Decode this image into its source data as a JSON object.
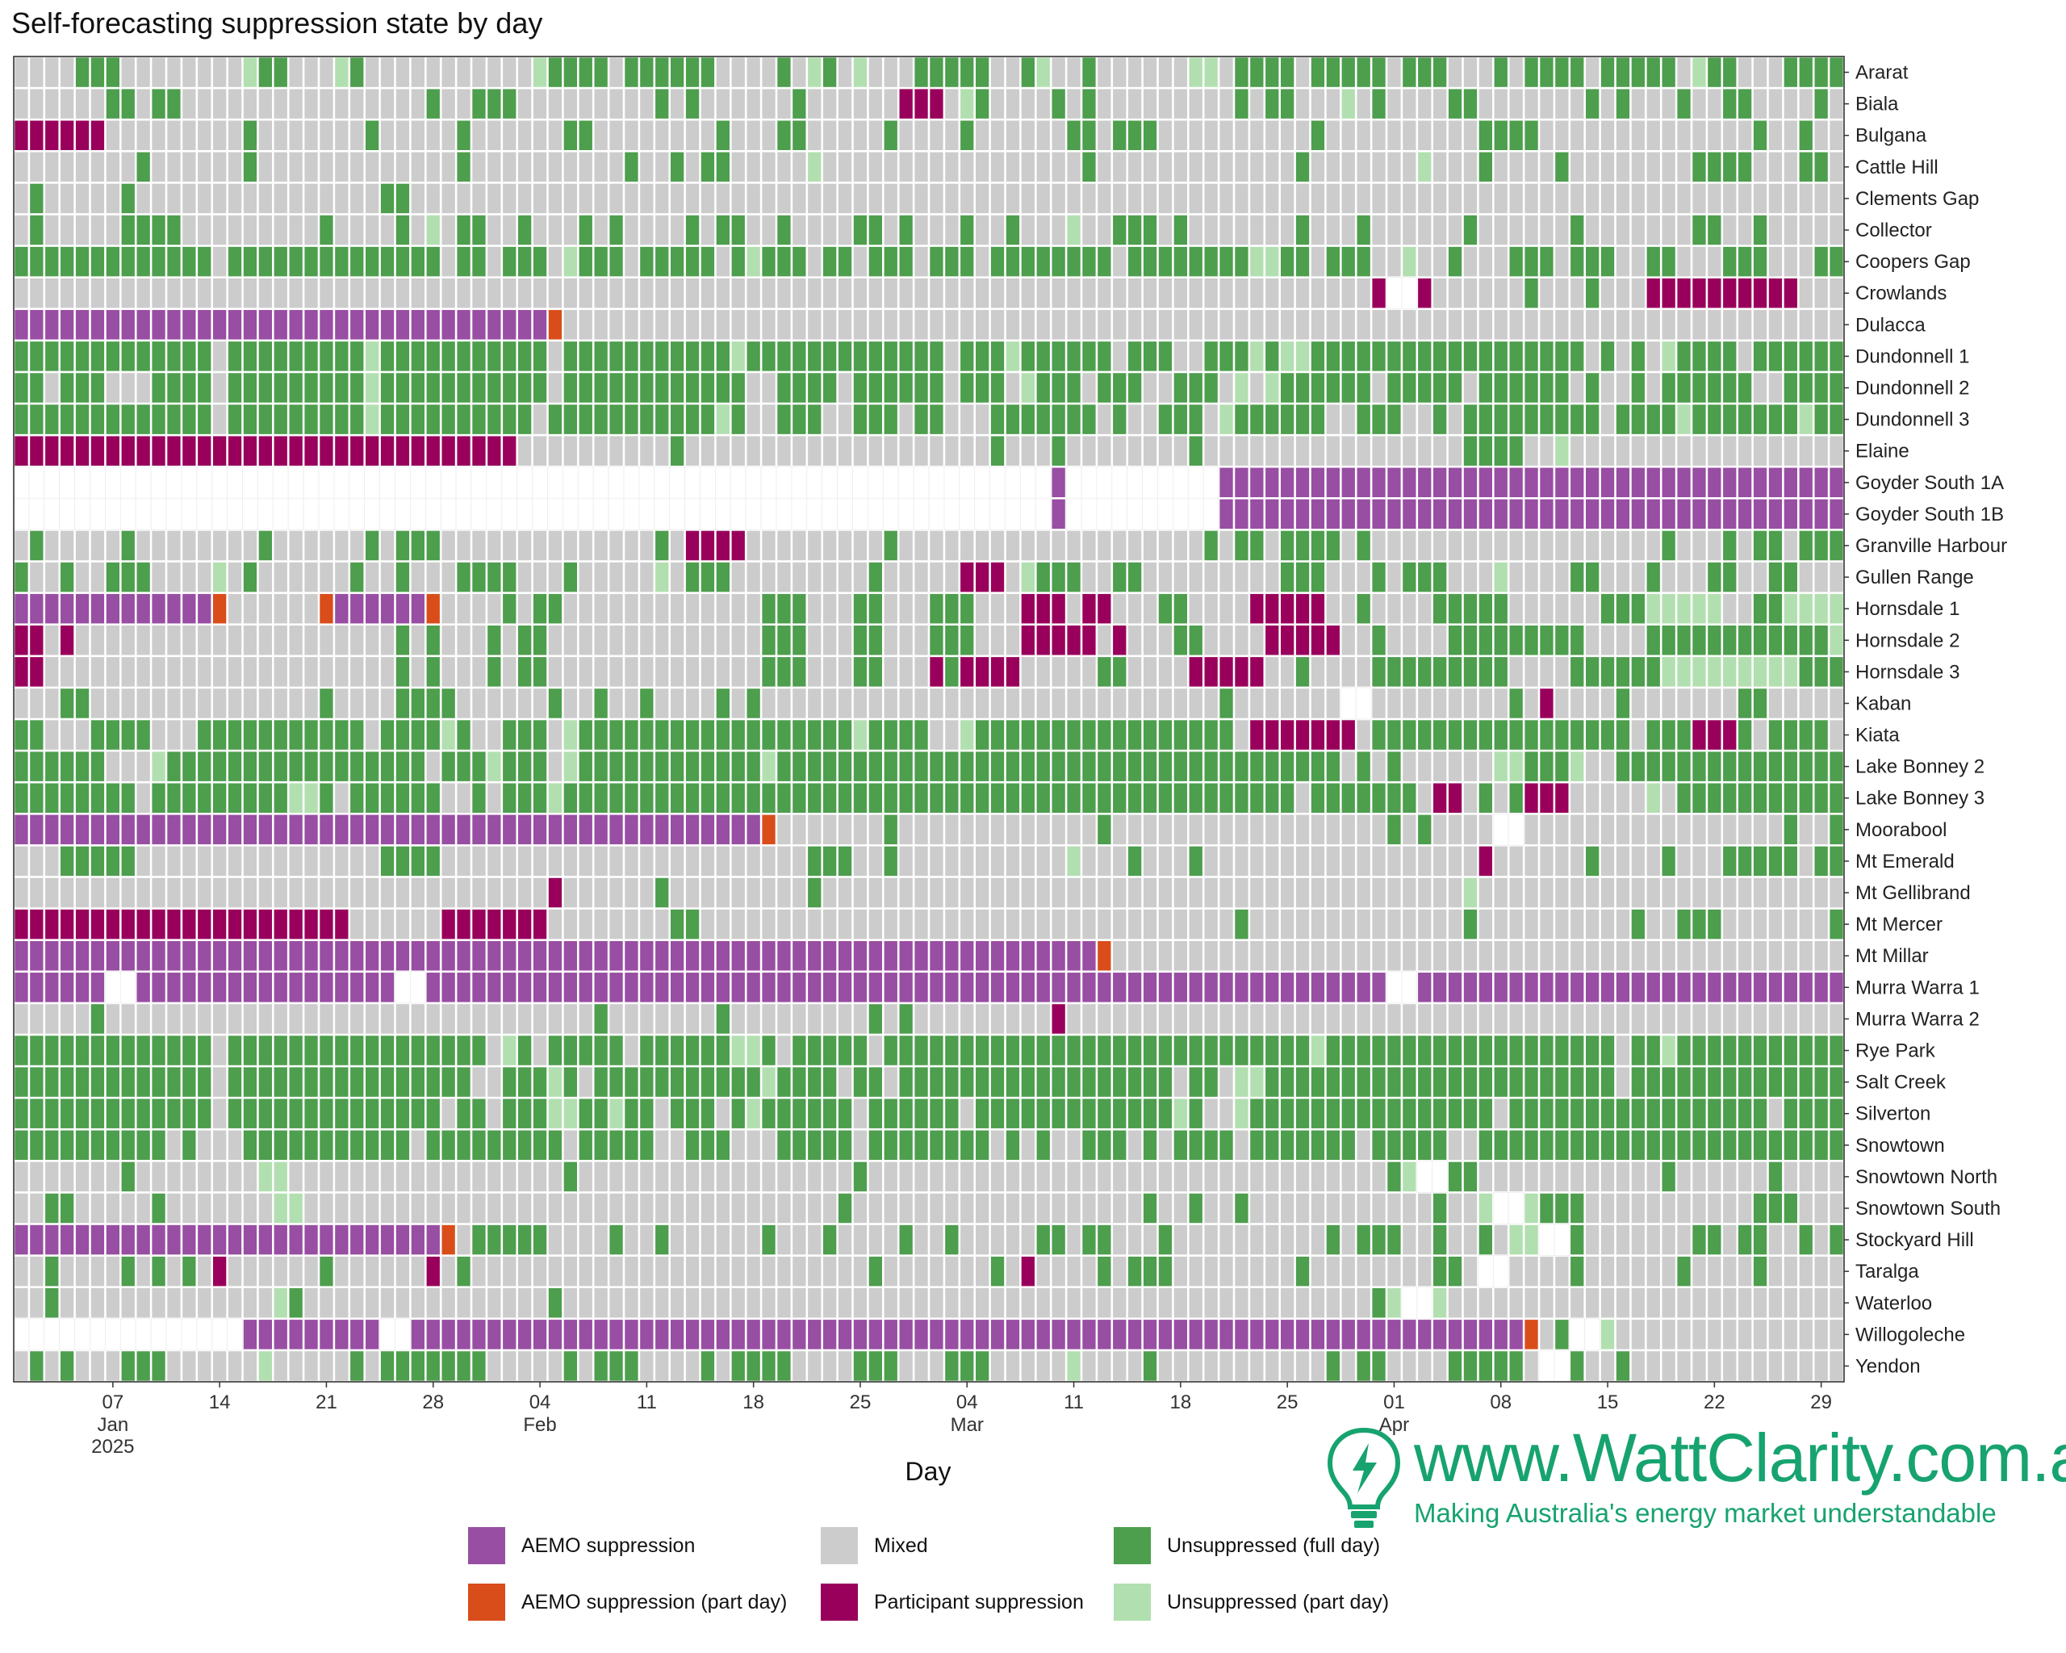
{
  "title": "Self-forecasting suppression state by day",
  "colors": {
    "aemo": "#984ea3",
    "aemo_part": "#d94d1a",
    "mixed": "#cccccc",
    "participant": "#99005c",
    "full": "#4d9e4d",
    "partday": "#b2dfb0",
    "brand": "#17a36f"
  },
  "legend": [
    {
      "key": "A",
      "label": "AEMO suppression",
      "color": "#984ea3"
    },
    {
      "key": "O",
      "label": "AEMO suppression (part day)",
      "color": "#d94d1a"
    },
    {
      "key": "M",
      "label": "Mixed",
      "color": "#cccccc"
    },
    {
      "key": "P",
      "label": "Participant suppression",
      "color": "#99005c"
    },
    {
      "key": "U",
      "label": "Unsuppressed (full day)",
      "color": "#4d9e4d"
    },
    {
      "key": "L",
      "label": "Unsuppressed (part day)",
      "color": "#b2dfb0"
    }
  ],
  "brand": {
    "url": "www.WattClarity.com.au",
    "registered": "®",
    "tagline": "Making Australia's energy market understandable"
  },
  "chart_data": {
    "type": "heatmap",
    "title": "Self-forecasting suppression state by day",
    "xlabel": "Day",
    "ylabel": "",
    "x_range": [
      "2025-01-01",
      "2025-04-30"
    ],
    "x_ticks": [
      {
        "date": "2025-01-07",
        "label": "07",
        "sub": "Jan",
        "sub2": "2025"
      },
      {
        "date": "2025-01-14",
        "label": "14",
        "sub": "",
        "sub2": ""
      },
      {
        "date": "2025-01-21",
        "label": "21",
        "sub": "",
        "sub2": ""
      },
      {
        "date": "2025-01-28",
        "label": "28",
        "sub": "",
        "sub2": ""
      },
      {
        "date": "2025-02-04",
        "label": "04",
        "sub": "Feb",
        "sub2": ""
      },
      {
        "date": "2025-02-11",
        "label": "11",
        "sub": "",
        "sub2": ""
      },
      {
        "date": "2025-02-18",
        "label": "18",
        "sub": "",
        "sub2": ""
      },
      {
        "date": "2025-02-25",
        "label": "25",
        "sub": "",
        "sub2": ""
      },
      {
        "date": "2025-03-04",
        "label": "04",
        "sub": "Mar",
        "sub2": ""
      },
      {
        "date": "2025-03-11",
        "label": "11",
        "sub": "",
        "sub2": ""
      },
      {
        "date": "2025-03-18",
        "label": "18",
        "sub": "",
        "sub2": ""
      },
      {
        "date": "2025-03-25",
        "label": "25",
        "sub": "",
        "sub2": ""
      },
      {
        "date": "2025-04-01",
        "label": "01",
        "sub": "Apr",
        "sub2": ""
      },
      {
        "date": "2025-04-08",
        "label": "08",
        "sub": "",
        "sub2": ""
      },
      {
        "date": "2025-04-15",
        "label": "15",
        "sub": "",
        "sub2": ""
      },
      {
        "date": "2025-04-22",
        "label": "22",
        "sub": "",
        "sub2": ""
      },
      {
        "date": "2025-04-29",
        "label": "29",
        "sub": "",
        "sub2": ""
      }
    ],
    "state_codes": {
      "A": "AEMO suppression",
      "O": "AEMO suppression (part day)",
      "M": "Mixed",
      "P": "Participant suppression",
      "U": "Unsuppressed (full day)",
      "L": "Unsuppressed (part day)",
      "-": "No data"
    },
    "units": [
      {
        "name": "Ararat",
        "states": "MMMMUUUMMMMMMMMLUUMMMLUMMMMMMMMMMMLUUUUMUUUUUUMMMMUMLUMLMMMUUUUUMMULMMUMMMMMMLLMUUUUMUUUUUMUUUMMMUMUUUUMUUUUUMLUUMMMUUUUULM"
      },
      {
        "name": "Biala",
        "states": "MMMMMMUUMUUMMMMMMMMMMMMMMMMUMMUUUMMMMMMMMMUMUMMMMMMUMMMMMMPPPMLUMMMMUMUMMMMMMMMMUMUUMMMLMUMMMMUUMMMMMMMUMUMMMUMMUUMMMMUMMLUM"
      },
      {
        "name": "Bulgana",
        "states": "PPPPPPMMMMMMMMMUMMMMMMMUMMMMMUMMMMMMUUMMMMMMMMUMMMUUMMMMMUMMMMUMMMMMMUUMUUUMMMMMMMMMMUMMMMMMMMMMUUUUMMMMMMMMMMMMMMUMMUMMUMMUM"
      },
      {
        "name": "Cattle Hill",
        "states": "MMMMMMMMUMMMMMMUMMMMMMMMMMMMMUMMMMMMMMMMUMMUMUUMMMMMLMMMMMMMMMMMMMMMMMUMMMMMMMMMMMMMUMMMMMMMLMMMUMMMMUMMMMMMMMUUUUMMMUUMMUMMM"
      },
      {
        "name": "Clements Gap",
        "states": "MUMMMMMUMMMMMMMMMMMMMMMMUUMMMMMMMMMMMMMMMMMMMMMMMMMMMMMMMMMMMMMMMMMMMMMMMMMMMMMMMMMMMMMMMMMMMMMMMMMMMMMMMMMMMMMMMMMMMMMMMMMMU"
      },
      {
        "name": "Collector",
        "states": "MUMMMMMUUUUMMMMMMMMMUMMMMUMLMUUMMUMMMUMUMMMMUMUUMMUMMMMUUMUMMMUMMUMMMLMMUUUMUMMMMMMMUMMMUMMMMMMUMMMMMMUMMMMMMMUUMMUMMMMMUUUMMM"
      },
      {
        "name": "Coopers Gap",
        "states": "UUUUUUUUUUUUUMUUUUUUUUUUUUUUMUUMUUUMLUUUMUUUUUMULUUUMUUMUUUMUUUMUUUUUUUUMUUUUUUUULLUUMUUUMMLMMUMMMUUUMUUUMMUUMMMUUUMMMUUUUUMMU"
      },
      {
        "name": "Crowlands",
        "states": "MMMMMMMMMMMMMMMMMMMMMMMMMMMMMMMMMMMMMMMMMMMMMMMMMMMMMMMMMMMMMMMMMMMMMMMMMMMMMMMMMMMMMMMMMP--PMMMMMMUMMMUMMMPPPPPPPPPPMMMMMMMMM"
      },
      {
        "name": "Dulacca",
        "states": "AAAAAAAAAAAAAAAAAAAAAAAAAAAAAAAAAAAOMMMMMMMMMMMMMMMMMMMMMMMMMMMMMMMMMMMMMMMMMMMMMMMMMMMMMMMMMMMMMMMMMMMMMMMMMMMMMMMMMMMMMMMM"
      },
      {
        "name": "Dundonnell 1",
        "states": "UUUUUUUUUUUUUMUUUUUUUUULUUUUUUUUUUUMUUUUUUUUUUULUUUUUUUUUUUUUMUUULUUUUUUMUUUMMUUULULLUUUUUUUUUUUUUUUUUUMUMUMLUUUUMUUUUUULUUUUMUL"
      },
      {
        "name": "Dundonnell 2",
        "states": "UUMUUUMMMUUUUMUUUUUUUUULUUUUUUUUUUUMUUUUUUUUUUUUMMUUUUMUUUUUUMUUUMLUUUMUUUMMUUUMLMLUUUUUUMUUUUUMUUUUUUMUMMUMUUUUUUMMUUUUULUUUUUL"
      },
      {
        "name": "Dundonnell 3",
        "states": "UUUUUUUUUUUUUMUUUUUUUUULUUUUUUUUUUMUUUUUUUUUUULUMMUUUMMUUUMUUMMMUUUUUUUMUMMUUUMLUUUUUUMMUUUMMUMUUUUUUUUUMUUUULUUUUUUULUUUUMMUL"
      },
      {
        "name": "Elaine",
        "states": "PPPPPPPPPPPPPPPPPPPPPPPPPPPPPPPPPMMMMMMMMMMUMMMMMMMMMMMMMMMMMMMMUMMMUMMMMMMMMUMMMMMMMMMMMMMMMMMUUUUMMLMMMMMMMMMMMMMMMMMMUUMUMMUM"
      },
      {
        "name": "Goyder South 1A",
        "states": "--------------------------------------------------------------------A----------AAAAAAAAAAAAAAAAAAAAAAAAAAAAAAAAAAAAAAAAAAAAAA"
      },
      {
        "name": "Goyder South 1B",
        "states": "--------------------------------------------------------------------A----------AAAAAAAAAAAAAAAAAAAAAAAAAAAAAAAAAAAAAAAAAAAAAA"
      },
      {
        "name": "Granville Harbour",
        "states": "MUMMMMMUMMMMMMMMUMMMMMMUMUUUMMMMMMMMMMMMMMUMPPPPMMMMMMMMMUMMMMMMMMMMMMMMMMMMMMUMUUMUUUUMUMMMMMMMMMMMMMMMMMMMUMMMUMUUMUUUUUUMMMU"
      },
      {
        "name": "Gullen Range",
        "states": "UMMUMMUUUMMMMLMUMMMMMMUMMUMMMUUUUMMMUMMMMMLMUUUMMMMMMMMMUMMMMMPPPMLUUUMMUUMMMMMMMMMUUUMMMUMUUUMMMLMMMMUUMMMUMMMUUMMUUMMMUMMMUMM"
      },
      {
        "name": "Hornsdale 1",
        "states": "AAAAAAAAAAAAAOMMMMMMOAAAAAAOMMMMUMUUMMMMMMMMMMMMMUUUMMMUUMMMUUUMMMPPPMPPMMMUUMMMMPPPPPMMUMMMMUUUUUMMMMMMUUULLLLLMMUULLLLUUUUUUL"
      },
      {
        "name": "Hornsdale 2",
        "states": "PPMPMMMMMMMMMMMMMMMMMMMMMUMUMMMUMUUMMMMMMMMMMMMMMUUUMMMUUMMMUUUMMMPPPPPMPMMMUUMMMMPPPPPMMUMMMMUUUUUUUUUMMMMUUUUUUUUUUUULUUUUUUUM"
      },
      {
        "name": "Hornsdale 3",
        "states": "PPMMMMMMMMMMMMMMMMMMMMMMMUMUMMMUMUUMMMMMMMMMMMMMMUUUMMMUUMMMPUPPPPMMMMMUUMMMMPPPPPMMUMMMMUUUUUUUUUMMMMUUUUUULLLLLLLLLUUUUUUUUUUUM"
      },
      {
        "name": "Kaban",
        "states": "MMMUUMMMMMMMMMMMMMMMUMMMMUUUUMMMMMMUMMUMMUMMMMUMUMMMMMMMMMMMMMMMMMMMMMMMMMMMMMMUMMMMMMM--MMMMMMMMMUMPMMMMUMMMMMMMUUMMMMMMMMMMMMM"
      },
      {
        "name": "Kiata",
        "states": "UUMMMUUUUMMMUUUUUUUUUUUMUUUULUMMUUUMLUUUUUUUUUUUUUUUUUULUUUUMMLUUUUUUUUUUUUUUUUUMPPPPPPPMUUUUUUUUUUUUUUUUUMUUUPPPUMUUUUMUUMUUM"
      },
      {
        "name": "Lake Bonney 2",
        "states": "UUUUUUMMMLUUUUUUUUUUUUUUUUUMUUULUUUMLUUUUUUUUUUUULUUUUUUUUUUUUUUUUUUUUUUUUUUUUUUUUUUUUUMUMUMMMMMMLLUUULMMUUUUUUUUUUUUUUUUUUUUUU"
      },
      {
        "name": "Lake Bonney 3",
        "states": "UUUUUUUUMUUUUUUUUULLUMUUUUUUMMUMUUULUUUUUUUUUUUUUUUUUUUUUUUUUUUUUUUUUUUUUUUUUUUUUUUUMUUUUUUUMPPMUMUPPPMMMMMLMUUUUUUUUUUUUUUUUUUM"
      },
      {
        "name": "Moorabool",
        "states": "AAAAAAAAAAAAAAAAAAAAAAAAAAAAAAAAAAAAAAAAAAAAAAAAAOMMMMMMMUMMMMMMMMMMMMMUMMMMMMMMMMMMMMMMMMUMUMMMM--MMMMMMMMMMMMMMMMMUMMUMMMMMUMM"
      },
      {
        "name": "Mt Emerald",
        "states": "MMMUUUUUMMMMMMMMMMMMMMMMUUUUMMMMMMMMMMMMMMMMMMMMMMMMUUUMMUMMMMMMMMMMMLMMMUMMMUMMMMMMMMMMMMMMMMMMPMMMMMMUMMMMUMMMUUUUUMUUMMMMMMMM"
      },
      {
        "name": "Mt Gellibrand",
        "states": "MMMMMMMMMMMMMMMMMMMMMMMMMMMMMMMMMMMPMMMMMMUMMMMMMMMMUMMMMMMMMMMMMMMMMMMMMMMMMMMMMMMMMMMMMMMMMMMLMMMMMMMMMMMMMMMMMMMMMMMMMMMMMMM"
      },
      {
        "name": "Mt Mercer",
        "states": "PPPPPPPPPPPPPPPPPPPPPPMMMMMMPPPPPPPMMMMMMMMUUMMMMMMMMMMMMMMMMMMMMMMMMMMMMMMMMMMMUMMMMMMMMMMMMMMUMMMMMMMMMMUMMUUUMMMMMMMUMMUMMUMM"
      },
      {
        "name": "Mt Millar",
        "states": "AAAAAAAAAAAAAAAAAAAAAAAAAAAAAAAAAAAAAAAAAAAAAAAAAAAAAAAAAAAAAAAAAAAAAAAOMMMMMMMMMMMMMMMMMMMMMMMMMMMMMMMMMMMMMMMMMMMMMMMMMMMMMMM"
      },
      {
        "name": "Murra Warra 1",
        "states": "AAAAAA--AAAAAAAAAAAAAAAAA--AAAAAAAAAAAAAAAAAAAAAAAAAAAAAAAAAAAAAAAAAAAAAAAAAAAAAAAAAAAAAAA--AAAAAAAAAAAAAAAAAAAAAAAAAAAAAAAAAAAAAA"
      },
      {
        "name": "Murra Warra 2",
        "states": "MMMMMUMMMMMMMMMMMMMMMMMMMMMMMMMMMMMMMMUMMMMMMMUMMMMMMMMMUMUMMMMMMMMMPMMMMMMMMMMMMMMMMMMMMMMMMMMMMMMMMMMMMMMMMMMMMMMMMMMMMMMMMUMM"
      },
      {
        "name": "Rye Park",
        "states": "UUUUUUUUUUUUUMUUUUUUUUUUUUUUUUUMLUMUUUUUMUUUUUULLUMUUUUUMUUUUUUUUUUUUUUUUUUUUUUUUUUUULUUUUUUUUUUUUUUUUUUUMUULUUUUUUUUUUUUUUUUUUUU"
      },
      {
        "name": "Salt Creek",
        "states": "UUUUUUUUUUUUUMUUUUUUUUUUUUUUUUMMUUULUMUUUUUUUUUUULUUUUMUUMUUUUUUUUUUUUUUUUUUMUUMLLUUUUUUUUUUUUUUUUUUUUUUUMUUUUUUUUUUUUUUUUUUUUUUL"
      },
      {
        "name": "Silverton",
        "states": "UUUUUUUUUUUUUMUUUUUUUUUUUUUUMUUMUUULLUULUUMUUUMULUUUUUUMUUUUUUMUUUUUUUUUUUUULUMMLUUUUUUUUUUUUUUUUMUUUUUUUUUUUUUUUUUMUUUUUMUUUUUUL"
      },
      {
        "name": "Snowtown",
        "states": "UUUUUUUUUUMUMMMUUUUUUUUUUUMUUUUUUUUUMUUUUUMMUUUMMMUUUUUMUUUUUUUUMUMUMMUUUMUMUUUUMUUUUUUUMUUUUUMMUUUUUUUUUUUUUUUUUUUUUUUUUUUUUUUUU"
      },
      {
        "name": "Snowtown North",
        "states": "MMMMMMMUMMMMMMMMLLMMMMMMMMMMMMMMMMMMUMMMMMMMMMMMMMMMMMMUMMMMMMMMMMMMMMMMMMMMMMMMMMMMMMMMMMUL--UUMMMMMMMMMMMMUMMMMMMUMMMMMMMMMMMM"
      },
      {
        "name": "Snowtown South",
        "states": "MMUUMMMMMUMMMMMMMLLMMMMMMMMMMMMMMMMMMMMMMMMMMMMMMMMMMMUMMMMMMMMMMMMMMMMMMMUMMUMMUMMMMMMMMMMMMUMML--LUUUMMMMMMMMMMMUUUMMMMMUMMMMUUM"
      },
      {
        "name": "Stockyard Hill",
        "states": "AAAAAAAAAAAAAAAAAAAAAAAAAAAAOMUUUUUMMMMUMMUMMMMMMUMMMUMMMMUMMUMMMMMUUMUUMMMUMMMMMMMMMMUMUUUMMUMMUMLL--UMMMMMMMUUMUUMMUMUUMUMMMUUUUL"
      },
      {
        "name": "Taralga",
        "states": "MMUMMMMUMUMUMPMMMMMMUMMMMMMPMUMMMMMMMMMMMMMMMMMMMMMMMMMMUMMMMMMMUMPMMMMUMUUUMMMMMMMMUMMMMMMMMUUM--MMMMUMMMMMMUMMMMUMMMMMPPPPPPPPPPP"
      },
      {
        "name": "Waterloo",
        "states": "MMUMMMMMMMMMMMMMMLUMMMMMMMMMMMMMMMMUMMMMMMMMMMMMMMMMMMMMMMMMMMMMMMMMMMMMMMMMMMMMMMMMMMMMMUL--LMMMMMMMMMMMMMMMMMMMMMMMMMMMMUMMMMMMM"
      },
      {
        "name": "Willogoleche",
        "states": "---------------AAAAAAAAA--AAAAAAAAAAAAAAAAAAAAAAAAAAAAAAAAAAAAAAAAAAAAAAAAAAAAAAAAAAAAAAAAAAAAAAAAAOMU--LMMMMMMMMMMMMMMMMUMUMMMMMUUMUMMMUL"
      },
      {
        "name": "Yendon",
        "states": "MUMUMMMUUUMMMMMMLMMMMMUMUUUUUUUMMMMMUMUUUMMMMUMUUUUMMMMUUUMMMUUUMMMMMLMMMMUMMMMMMMMMMMUMUUMMMMUUUUUM--UMMUMMMMMMMMMMMMMMMUUMUMMUMMM"
      }
    ]
  }
}
